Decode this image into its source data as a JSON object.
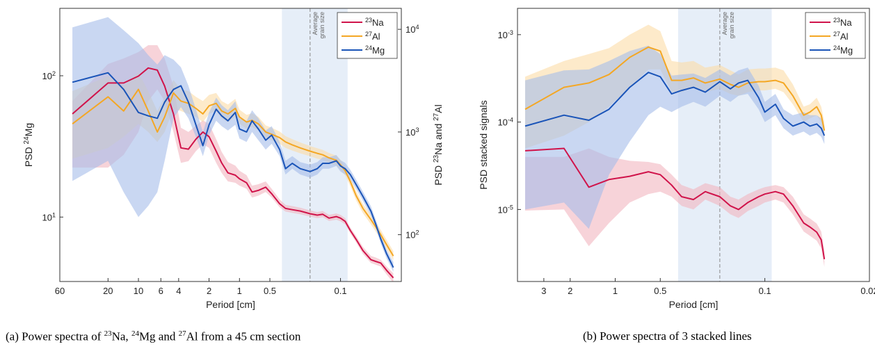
{
  "colors": {
    "na": "#d0134a",
    "al": "#f4a724",
    "mg": "#1a54b8",
    "na_fill": "#f2b5c0",
    "al_fill": "#fbdca6",
    "mg_fill": "#a5bde9",
    "grain_band": "#e6eef8"
  },
  "captions": {
    "a": {
      "prefix": "(a) Power spectra of ",
      "na_sup": "23",
      "na": "Na, ",
      "mg_sup": "24",
      "mg": "Mg and ",
      "al_sup": "27",
      "al": "Al from a 45 cm section"
    },
    "b": {
      "text": "(b) Power spectra of 3 stacked lines"
    }
  },
  "chart_data": [
    {
      "type": "line",
      "panel": "a",
      "x_scale": "log",
      "x_reversed": true,
      "xlabel": "Period [cm]",
      "xlim": [
        60,
        0.025
      ],
      "xticks": [
        60,
        20,
        10,
        6,
        4,
        2,
        1,
        0.5,
        0.1
      ],
      "xtick_labels": [
        "60",
        "20",
        "10",
        "6",
        "4",
        "2",
        "1",
        "0.5",
        "0.1"
      ],
      "y_left": {
        "label_main": "PSD ",
        "label_sup": "24",
        "label_tail": "Mg",
        "scale": "log",
        "ylim": [
          3.5,
          300
        ],
        "ticks": [
          {
            "base": "10",
            "exp": "1",
            "value": 10
          },
          {
            "base": "10",
            "exp": "2",
            "value": 100
          }
        ]
      },
      "y_right": {
        "label_parts": [
          "PSD ",
          "23",
          "Na and ",
          "27",
          "Al"
        ],
        "scale": "log",
        "ylim": [
          35,
          16000
        ],
        "ticks": [
          {
            "base": "10",
            "exp": "2",
            "value": 100
          },
          {
            "base": "10",
            "exp": "3",
            "value": 1000
          },
          {
            "base": "10",
            "exp": "4",
            "value": 10000
          }
        ]
      },
      "grain_band": {
        "x_range": [
          0.38,
          0.085
        ],
        "line_x": 0.2,
        "label": [
          "Average",
          "grain size"
        ]
      },
      "legend": {
        "placement": "top-right",
        "entries": [
          {
            "sup": "23",
            "name": "Na"
          },
          {
            "sup": "27",
            "name": "Al"
          },
          {
            "sup": "24",
            "name": "Mg"
          }
        ]
      },
      "series": [
        {
          "name": "23Na",
          "axis": "right",
          "x": [
            45,
            20,
            14,
            10,
            8,
            6.5,
            5.5,
            4.5,
            3.8,
            3.2,
            2.7,
            2.3,
            2.0,
            1.7,
            1.5,
            1.3,
            1.1,
            1.0,
            0.85,
            0.75,
            0.65,
            0.55,
            0.48,
            0.4,
            0.35,
            0.3,
            0.25,
            0.2,
            0.17,
            0.15,
            0.13,
            0.11,
            0.1,
            0.09,
            0.08,
            0.07,
            0.06,
            0.05,
            0.045,
            0.04,
            0.035,
            0.03
          ],
          "y": [
            1500,
            3000,
            3000,
            3500,
            4200,
            4000,
            2800,
            1500,
            700,
            680,
            850,
            1000,
            900,
            650,
            500,
            400,
            380,
            350,
            320,
            260,
            270,
            290,
            250,
            200,
            180,
            175,
            170,
            160,
            155,
            158,
            145,
            150,
            145,
            135,
            110,
            90,
            70,
            57,
            55,
            53,
            45,
            38
          ],
          "low": [
            450,
            450,
            600,
            1000,
            2000,
            2600,
            2000,
            1000,
            500,
            520,
            650,
            760,
            700,
            500,
            400,
            330,
            320,
            300,
            280,
            230,
            240,
            260,
            230,
            185,
            168,
            163,
            158,
            150,
            145,
            148,
            136,
            140,
            135,
            126,
            103,
            84,
            65,
            53,
            51,
            49,
            41,
            34
          ],
          "high": [
            2000,
            4600,
            5200,
            6000,
            7000,
            7000,
            5200,
            2800,
            1100,
            1000,
            1150,
            1300,
            1200,
            850,
            640,
            510,
            470,
            420,
            380,
            300,
            310,
            330,
            280,
            220,
            195,
            190,
            183,
            172,
            166,
            170,
            156,
            161,
            156,
            145,
            118,
            97,
            76,
            62,
            60,
            57,
            49,
            42
          ]
        },
        {
          "name": "27Al",
          "axis": "right",
          "x": [
            45,
            20,
            14,
            10,
            8,
            6.5,
            5.5,
            4.5,
            3.8,
            3.2,
            2.7,
            2.3,
            2.0,
            1.7,
            1.5,
            1.3,
            1.1,
            1.0,
            0.85,
            0.75,
            0.65,
            0.55,
            0.48,
            0.4,
            0.35,
            0.3,
            0.25,
            0.2,
            0.17,
            0.15,
            0.13,
            0.11,
            0.1,
            0.09,
            0.08,
            0.07,
            0.06,
            0.05,
            0.045,
            0.04,
            0.035,
            0.03
          ],
          "y": [
            1200,
            2200,
            1600,
            2600,
            1600,
            1000,
            1400,
            2400,
            2000,
            1900,
            1700,
            1500,
            1800,
            1900,
            1600,
            1500,
            1700,
            1400,
            1250,
            1300,
            1200,
            1000,
            950,
            880,
            800,
            750,
            700,
            650,
            620,
            600,
            560,
            530,
            480,
            420,
            330,
            240,
            180,
            140,
            120,
            100,
            80,
            62
          ],
          "low": [
            550,
            700,
            900,
            1200,
            1000,
            800,
            1000,
            1700,
            1600,
            1500,
            1400,
            1250,
            1500,
            1600,
            1350,
            1250,
            1400,
            1200,
            1080,
            1120,
            1040,
            870,
            830,
            770,
            700,
            660,
            620,
            580,
            550,
            535,
            500,
            475,
            430,
            378,
            297,
            216,
            162,
            126,
            108,
            90,
            72,
            56
          ],
          "high": [
            2500,
            3500,
            2800,
            3800,
            2500,
            1600,
            2200,
            3200,
            2600,
            2500,
            2200,
            2000,
            2300,
            2400,
            2000,
            1850,
            2100,
            1650,
            1470,
            1520,
            1400,
            1160,
            1100,
            1010,
            910,
            850,
            790,
            730,
            695,
            670,
            625,
            590,
            535,
            467,
            367,
            267,
            200,
            156,
            133,
            111,
            89,
            69
          ]
        },
        {
          "name": "24Mg",
          "axis": "left",
          "x": [
            45,
            20,
            14,
            10,
            8,
            6.5,
            5.5,
            4.5,
            3.8,
            3.2,
            2.7,
            2.3,
            2.0,
            1.7,
            1.5,
            1.3,
            1.1,
            1.0,
            0.85,
            0.75,
            0.65,
            0.55,
            0.48,
            0.4,
            0.35,
            0.3,
            0.25,
            0.2,
            0.17,
            0.15,
            0.13,
            0.11,
            0.1,
            0.09,
            0.08,
            0.07,
            0.06,
            0.05,
            0.045,
            0.04,
            0.035,
            0.03
          ],
          "y": [
            90,
            105,
            80,
            55,
            52,
            50,
            65,
            80,
            85,
            65,
            45,
            32,
            45,
            58,
            52,
            48,
            55,
            42,
            40,
            48,
            42,
            35,
            38,
            30,
            22,
            24,
            22,
            21,
            22,
            24,
            24,
            25,
            23,
            22,
            20,
            17,
            14,
            11,
            9,
            7,
            5.5,
            4.4
          ],
          "low": [
            18,
            25,
            15,
            10,
            12,
            15,
            25,
            50,
            60,
            50,
            37,
            27,
            38,
            48,
            44,
            41,
            45,
            36,
            34,
            40,
            35,
            30,
            33,
            27,
            20,
            22,
            20,
            19,
            20,
            22,
            22,
            23,
            21,
            20,
            18.5,
            15.8,
            13,
            10.2,
            8.4,
            6.5,
            5.1,
            4.1
          ],
          "high": [
            220,
            260,
            210,
            170,
            140,
            120,
            140,
            130,
            115,
            85,
            58,
            40,
            55,
            70,
            62,
            57,
            66,
            50,
            48,
            57,
            50,
            41,
            44,
            34,
            25,
            27,
            24.5,
            23.5,
            24.5,
            26.5,
            26.5,
            27.5,
            25.3,
            24.2,
            21.6,
            18.4,
            15.1,
            11.9,
            9.7,
            7.6,
            5.9,
            4.8
          ]
        }
      ]
    },
    {
      "type": "line",
      "panel": "b",
      "x_scale": "log",
      "x_reversed": true,
      "xlabel": "Period [cm]",
      "xlim": [
        4.5,
        0.02
      ],
      "xticks": [
        3,
        2,
        1,
        0.5,
        0.1,
        0.02
      ],
      "xtick_labels": [
        "3",
        "2",
        "1",
        "0.5",
        "0.1",
        "0.02"
      ],
      "y_left": {
        "label": "PSD stacked signals",
        "scale": "log",
        "ylim": [
          1.5e-06,
          0.002
        ],
        "ticks": [
          {
            "base": "10",
            "exp": "-5",
            "value": 1e-05
          },
          {
            "base": "10",
            "exp": "-4",
            "value": 0.0001
          },
          {
            "base": "10",
            "exp": "-3",
            "value": 0.001
          }
        ]
      },
      "grain_band": {
        "x_range": [
          0.38,
          0.09
        ],
        "line_x": 0.2,
        "label": [
          "Average",
          "grain size"
        ]
      },
      "legend": {
        "placement": "top-right",
        "entries": [
          {
            "sup": "23",
            "name": "Na"
          },
          {
            "sup": "27",
            "name": "Al"
          },
          {
            "sup": "24",
            "name": "Mg"
          }
        ]
      },
      "series": [
        {
          "name": "23Na",
          "x": [
            4,
            2.2,
            1.5,
            1.1,
            0.8,
            0.6,
            0.5,
            0.42,
            0.36,
            0.3,
            0.25,
            0.2,
            0.17,
            0.15,
            0.13,
            0.11,
            0.1,
            0.085,
            0.075,
            0.065,
            0.055,
            0.05,
            0.045,
            0.042,
            0.04
          ],
          "y": [
            4.7e-05,
            5e-05,
            1.8e-05,
            2.2e-05,
            2.4e-05,
            2.7e-05,
            2.5e-05,
            1.9e-05,
            1.4e-05,
            1.3e-05,
            1.6e-05,
            1.4e-05,
            1.1e-05,
            1e-05,
            1.2e-05,
            1.4e-05,
            1.5e-05,
            1.6e-05,
            1.5e-05,
            1.1e-05,
            7e-06,
            6.3e-06,
            5.5e-06,
            4.5e-06,
            2.7e-06
          ],
          "low": [
            9.7e-06,
            1e-05,
            3.8e-06,
            7e-06,
            1.2e-05,
            1.5e-05,
            1.6e-05,
            1.4e-05,
            1.1e-05,
            1e-05,
            1.3e-05,
            1.1e-05,
            8.8e-06,
            8e-06,
            9.6e-06,
            1.1e-05,
            1.2e-05,
            1.3e-05,
            1.2e-05,
            8.8e-06,
            5.6e-06,
            5e-06,
            4.4e-06,
            3.6e-06,
            2.2e-06
          ],
          "high": [
            4e-05,
            4e-05,
            5e-05,
            4e-05,
            3.6e-05,
            3.5e-05,
            3.3e-05,
            2.5e-05,
            1.9e-05,
            1.7e-05,
            2e-05,
            1.8e-05,
            1.4e-05,
            1.3e-05,
            1.5e-05,
            1.7e-05,
            1.8e-05,
            1.9e-05,
            1.8e-05,
            1.4e-05,
            8.8e-06,
            7.9e-06,
            6.9e-06,
            5.6e-06,
            3.4e-06
          ]
        },
        {
          "name": "27Al",
          "x": [
            4,
            2.2,
            1.5,
            1.1,
            0.8,
            0.6,
            0.5,
            0.42,
            0.36,
            0.3,
            0.25,
            0.2,
            0.17,
            0.15,
            0.13,
            0.11,
            0.1,
            0.085,
            0.075,
            0.065,
            0.055,
            0.05,
            0.045,
            0.042,
            0.04
          ],
          "y": [
            0.00014,
            0.00025,
            0.00028,
            0.00035,
            0.00055,
            0.00072,
            0.00065,
            0.0003,
            0.0003,
            0.00032,
            0.00028,
            0.00031,
            0.00027,
            0.00025,
            0.00028,
            0.00029,
            0.00029,
            0.0003,
            0.00028,
            0.0002,
            0.00012,
            0.00013,
            0.00015,
            0.00012,
            8e-05
          ],
          "low": [
            5e-05,
            7e-05,
            0.0001,
            0.00015,
            0.00025,
            0.0004,
            0.0004,
            0.00022,
            0.00022,
            0.00025,
            0.00022,
            0.00024,
            0.00021,
            0.0002,
            0.00022,
            0.00023,
            0.00023,
            0.00024,
            0.00022,
            0.00016,
            0.0001,
            0.00011,
            0.00012,
            0.0001,
            6.5e-05
          ],
          "high": [
            0.00033,
            0.0005,
            0.0006,
            0.0007,
            0.001,
            0.0013,
            0.0011,
            0.0005,
            0.00048,
            0.0005,
            0.00042,
            0.00045,
            0.00039,
            0.00035,
            0.0004,
            0.00041,
            0.00041,
            0.00042,
            0.00039,
            0.00027,
            0.00015,
            0.00016,
            0.00019,
            0.00015,
            0.0001
          ]
        },
        {
          "name": "24Mg",
          "x": [
            4,
            2.2,
            1.5,
            1.1,
            0.8,
            0.6,
            0.5,
            0.42,
            0.36,
            0.3,
            0.25,
            0.2,
            0.17,
            0.15,
            0.13,
            0.11,
            0.1,
            0.085,
            0.075,
            0.065,
            0.055,
            0.05,
            0.045,
            0.042,
            0.04
          ],
          "y": [
            9e-05,
            0.00012,
            0.000105,
            0.00014,
            0.00025,
            0.00037,
            0.00033,
            0.00021,
            0.00023,
            0.00025,
            0.00022,
            0.00029,
            0.00024,
            0.00028,
            0.0003,
            0.00019,
            0.00013,
            0.00016,
            0.00011,
            9e-05,
            0.0001,
            9e-05,
            9.5e-05,
            8.5e-05,
            7e-05
          ],
          "low": [
            1e-05,
            1.2e-05,
            6e-06,
            2.5e-05,
            6e-05,
            0.00012,
            0.00015,
            0.00013,
            0.00015,
            0.00017,
            0.00015,
            0.0002,
            0.00017,
            0.0002,
            0.00021,
            0.00014,
            0.0001,
            0.00012,
            8.5e-05,
            7e-05,
            7.8e-05,
            7e-05,
            7.5e-05,
            6.8e-05,
            5.6e-05
          ],
          "high": [
            0.0003,
            0.00039,
            0.0004,
            0.0005,
            0.00065,
            0.00075,
            0.0006,
            0.00034,
            0.00035,
            0.00036,
            0.00032,
            0.0004,
            0.00034,
            0.00039,
            0.00042,
            0.00026,
            0.00017,
            0.00021,
            0.00014,
            0.00012,
            0.00013,
            0.00012,
            0.00012,
            0.00011,
            9e-05
          ]
        }
      ]
    }
  ]
}
